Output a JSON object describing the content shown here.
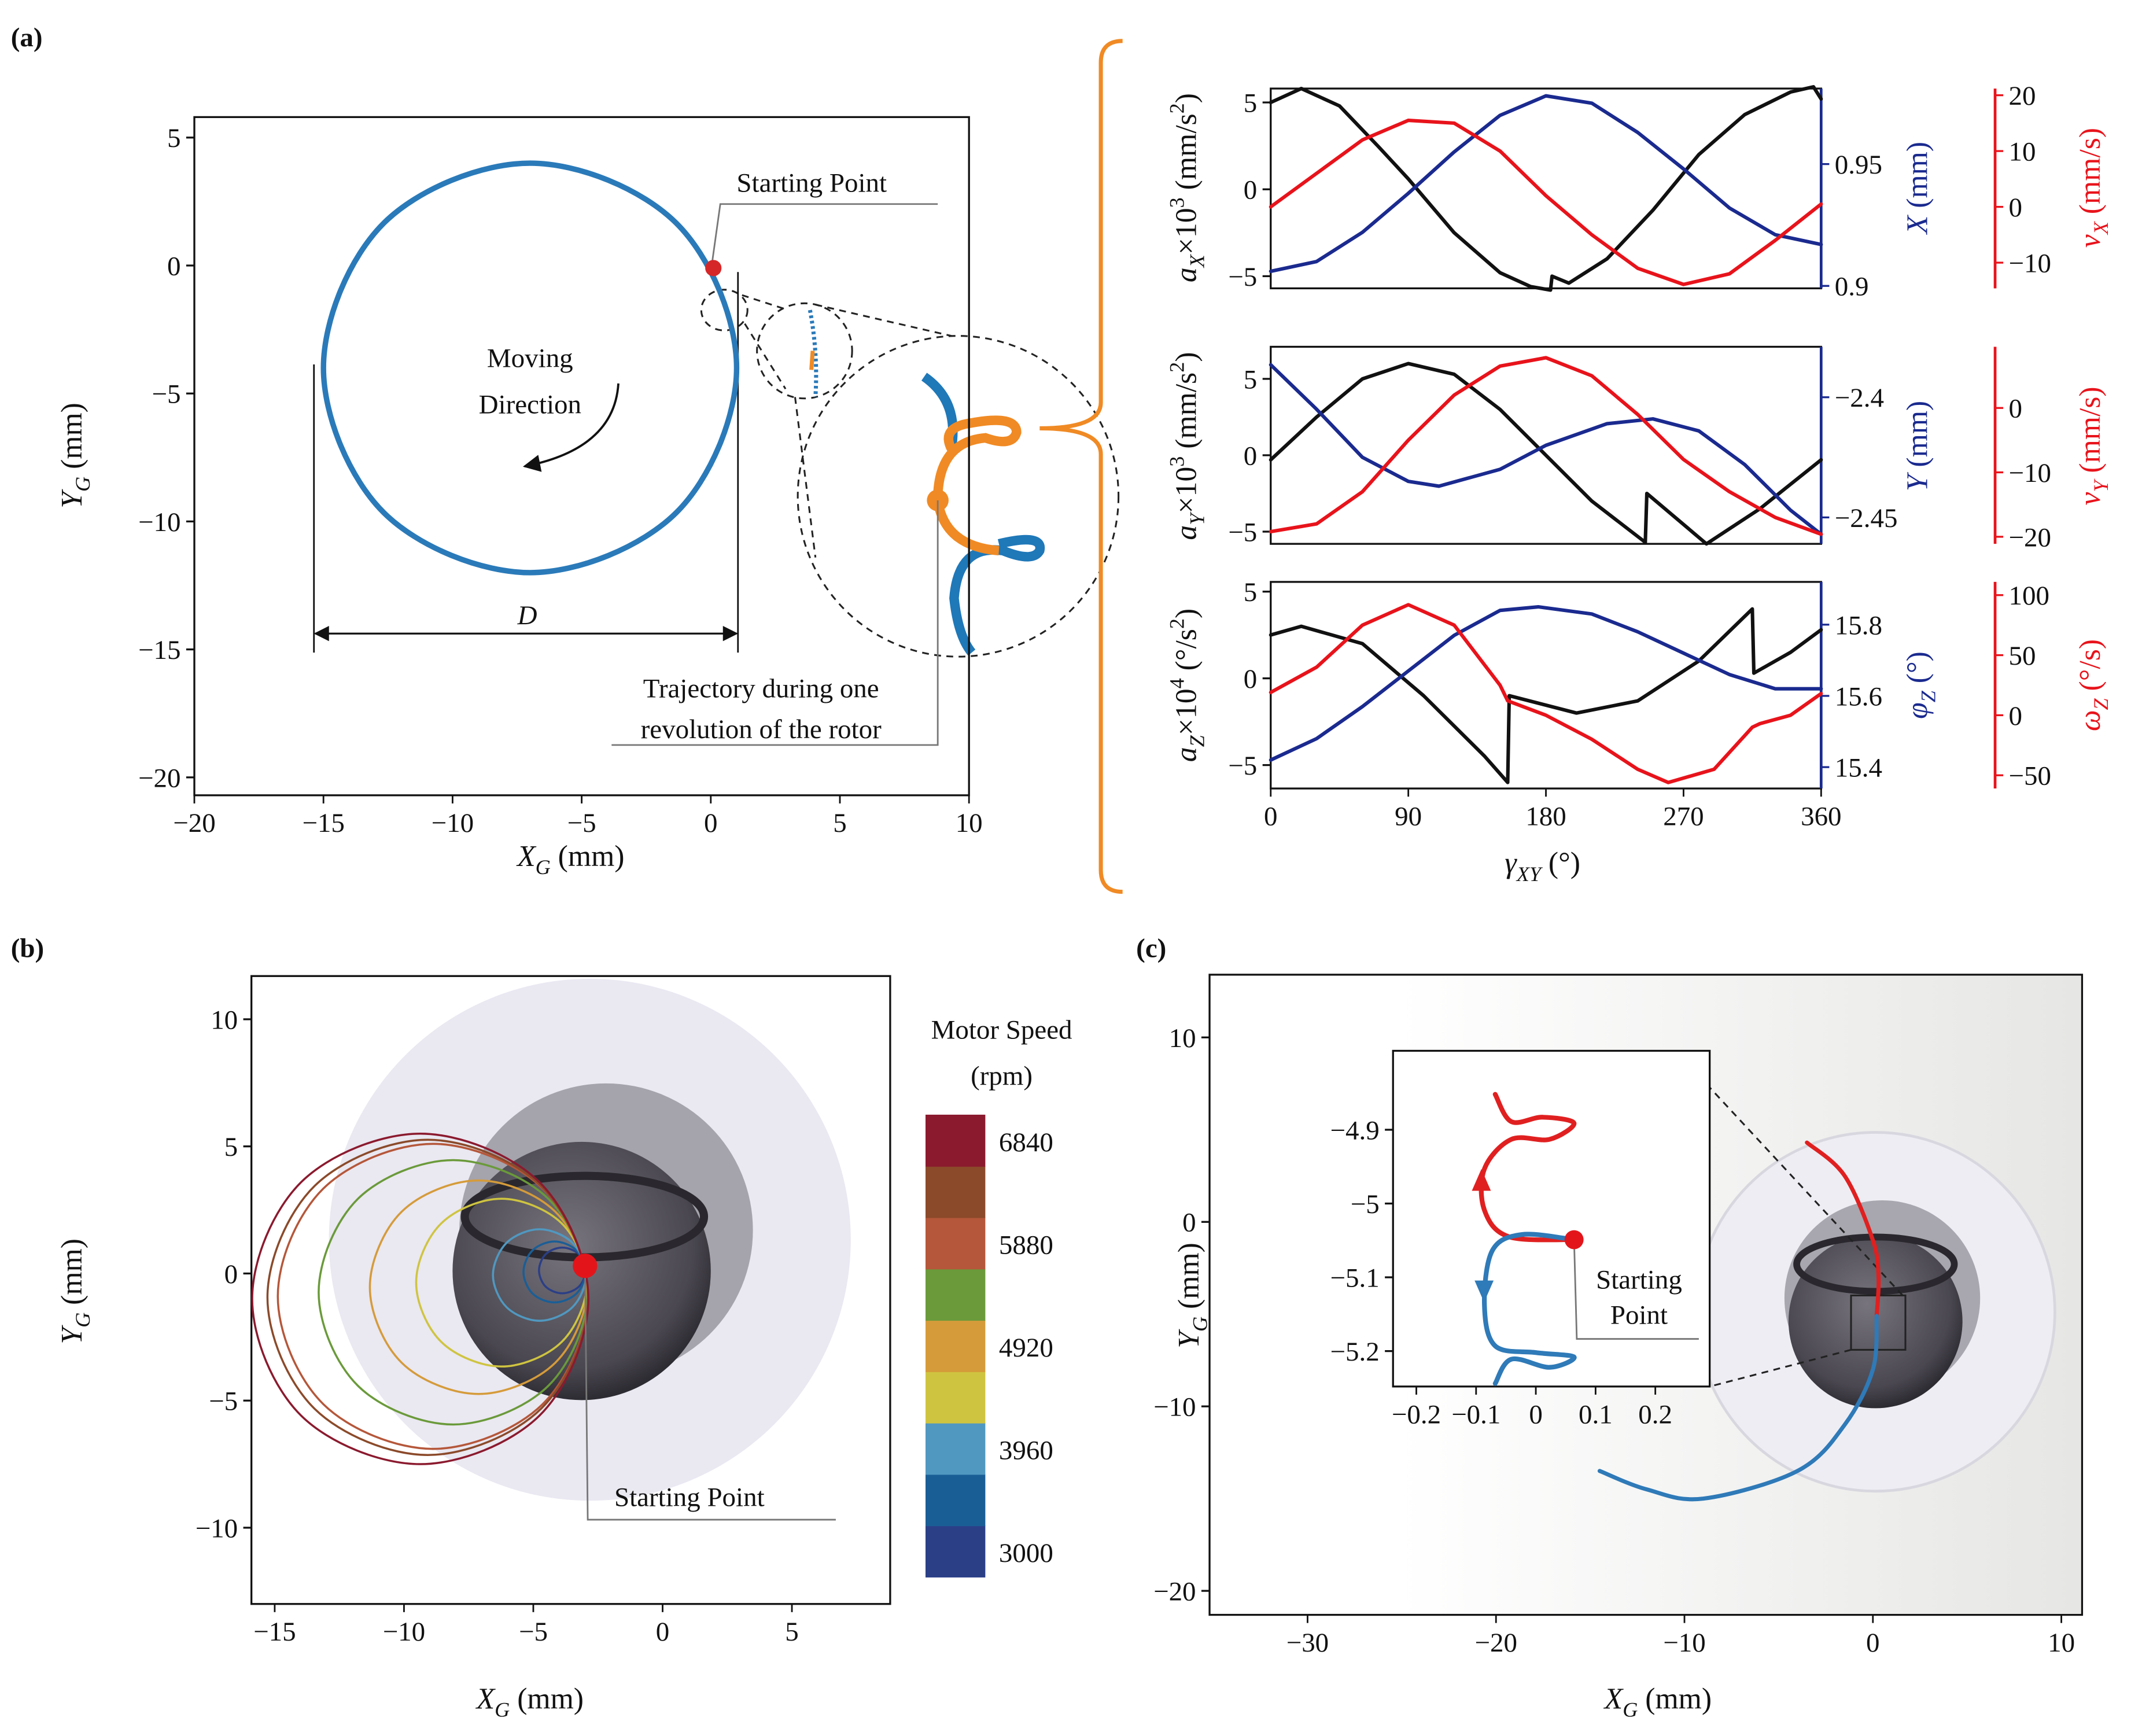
{
  "panel_labels": [
    "(a)",
    "(b)",
    "(c)"
  ],
  "chart_data": [
    {
      "type": "line",
      "xlabel": [
        "X",
        "G",
        " (mm)"
      ],
      "ylabel": [
        "Y",
        "G",
        " (mm)"
      ],
      "xlim": [
        -20,
        10
      ],
      "ylim": [
        -20.7,
        5.8
      ],
      "xticks": [
        {
          "value": -20,
          "label": "−20"
        },
        {
          "value": -15,
          "label": "−15"
        },
        {
          "value": -10,
          "label": "−10"
        },
        {
          "value": -5,
          "label": "−5"
        },
        0,
        5,
        10
      ],
      "yticks": [
        {
          "value": -20,
          "label": "−20"
        },
        {
          "value": -15,
          "label": "−15"
        },
        {
          "value": -10,
          "label": "−10"
        },
        {
          "value": -5,
          "label": "−5"
        },
        0,
        5
      ],
      "series": [
        {
          "color": "#2a7ab9",
          "x": [
            1,
            -1.34,
            -7,
            -12.66,
            -15,
            -12.66,
            -7,
            -1.34,
            1
          ],
          "values": [
            -4,
            1.66,
            4,
            1.66,
            -4,
            -9.66,
            -12,
            -9.66,
            -4
          ]
        }
      ],
      "marker": {
        "x": 0.1,
        "y": -0.1,
        "color": "#d62728"
      },
      "annotations": {
        "start": "Starting Point",
        "direction": [
          "Moving",
          "Direction"
        ],
        "diameter": "D",
        "trajectory": [
          "Trajectory during one",
          "revolution of the rotor"
        ]
      }
    },
    {
      "type": "line",
      "ylabel": [
        "a",
        "X",
        "×10",
        "3",
        " (mm/s",
        "2",
        ")"
      ],
      "y2label": [
        "X",
        " (mm)"
      ],
      "y3label": [
        "v",
        "X",
        " (mm/s)"
      ],
      "xlim": [
        0,
        360
      ],
      "ylim": [
        -5.7,
        5.8
      ],
      "yticks": [
        {
          "value": -5,
          "label": "−5"
        },
        0,
        5
      ],
      "y2lim": [
        0.899,
        0.981
      ],
      "y2ticks": [
        0.9,
        0.95
      ],
      "y3lim": [
        -14.6,
        21.2
      ],
      "y3ticks": [
        {
          "value": -10,
          "label": "−10"
        },
        0,
        10,
        20
      ],
      "series": [
        {
          "color": "#111111",
          "x": [
            0,
            20,
            45,
            70,
            90,
            120,
            150,
            170,
            183,
            184,
            195,
            220,
            250,
            280,
            310,
            340,
            355,
            360
          ],
          "values": [
            5.0,
            5.8,
            4.8,
            2.5,
            0.6,
            -2.5,
            -4.8,
            -5.6,
            -5.8,
            -5.0,
            -5.4,
            -4.0,
            -1.2,
            2.0,
            4.3,
            5.6,
            5.9,
            5.2
          ]
        },
        {
          "color": "#1a2a8f",
          "axis": "y2",
          "x": [
            0,
            30,
            60,
            90,
            120,
            150,
            180,
            210,
            240,
            270,
            300,
            330,
            360
          ],
          "values": [
            0.906,
            0.91,
            0.922,
            0.938,
            0.955,
            0.97,
            0.978,
            0.975,
            0.963,
            0.948,
            0.932,
            0.921,
            0.917
          ]
        },
        {
          "color": "#e8131b",
          "axis": "y3",
          "x": [
            0,
            30,
            60,
            90,
            120,
            150,
            180,
            210,
            240,
            270,
            300,
            330,
            360
          ],
          "values": [
            0,
            6,
            12,
            15.5,
            15,
            10,
            2,
            -5,
            -11,
            -13.9,
            -12,
            -6,
            0.5
          ]
        }
      ]
    },
    {
      "type": "line",
      "ylabel": [
        "a",
        "Y",
        "×10",
        "3",
        " (mm/s",
        "2",
        ")"
      ],
      "y2label": [
        "Y",
        " (mm)"
      ],
      "y3label": [
        "v",
        "Y",
        " (mm/s)"
      ],
      "xlim": [
        0,
        360
      ],
      "ylim": [
        -5.8,
        7.1
      ],
      "yticks": [
        {
          "value": -5,
          "label": "−5"
        },
        0,
        5
      ],
      "y2lim": [
        -2.461,
        -2.379
      ],
      "y2ticks": [
        {
          "value": -2.45,
          "label": "−2.45"
        },
        {
          "value": -2.4,
          "label": "−2.4"
        }
      ],
      "y3lim": [
        -21.1,
        9.5
      ],
      "y3ticks": [
        {
          "value": -20,
          "label": "−20"
        },
        {
          "value": -10,
          "label": "−10"
        },
        0
      ],
      "series": [
        {
          "color": "#111111",
          "x": [
            0,
            30,
            60,
            90,
            120,
            150,
            180,
            210,
            245,
            246,
            285,
            320,
            360
          ],
          "values": [
            -0.3,
            2.5,
            5.0,
            6.0,
            5.3,
            3.0,
            0.0,
            -3.0,
            -5.7,
            -2.5,
            -5.8,
            -3.5,
            -0.3
          ]
        },
        {
          "color": "#1a2a8f",
          "axis": "y2",
          "x": [
            0,
            30,
            60,
            90,
            110,
            150,
            180,
            220,
            250,
            280,
            310,
            340,
            360
          ],
          "values": [
            -2.3865,
            -2.405,
            -2.425,
            -2.435,
            -2.437,
            -2.43,
            -2.42,
            -2.411,
            -2.409,
            -2.414,
            -2.428,
            -2.447,
            -2.457
          ]
        },
        {
          "color": "#e8131b",
          "axis": "y3",
          "x": [
            0,
            30,
            60,
            90,
            120,
            150,
            180,
            210,
            240,
            270,
            300,
            330,
            360
          ],
          "values": [
            -19.2,
            -18,
            -13,
            -5,
            2,
            6.5,
            7.8,
            5,
            -1,
            -8,
            -13,
            -17,
            -19.6
          ]
        }
      ]
    },
    {
      "type": "line",
      "xlabel": [
        "γ",
        "XY",
        " (°)"
      ],
      "ylabel": [
        "a",
        "Z",
        "×10",
        "4",
        " (°/s",
        "2",
        ")"
      ],
      "y2label": [
        "φ",
        "Z",
        " (°)"
      ],
      "y3label": [
        "ω",
        "Z",
        " (°/s)"
      ],
      "xlim": [
        0,
        360
      ],
      "xticks": [
        0,
        90,
        180,
        270,
        360
      ],
      "ylim": [
        -6.35,
        5.56
      ],
      "yticks": [
        {
          "value": -5,
          "label": "−5"
        },
        0,
        5
      ],
      "y2lim": [
        15.34,
        15.92
      ],
      "y2ticks": [
        15.4,
        15.6,
        15.8
      ],
      "y3lim": [
        -61,
        111
      ],
      "y3ticks": [
        {
          "value": -50,
          "label": "−50"
        },
        0,
        50,
        100
      ],
      "series": [
        {
          "color": "#111111",
          "x": [
            0,
            20,
            60,
            100,
            140,
            155,
            156,
            200,
            240,
            280,
            315,
            316,
            340,
            360
          ],
          "values": [
            2.5,
            3.0,
            2.0,
            -1.0,
            -4.5,
            -6.0,
            -1.0,
            -2.0,
            -1.3,
            1.0,
            4.0,
            0.3,
            1.5,
            2.8
          ]
        },
        {
          "color": "#1a2a8f",
          "axis": "y2",
          "x": [
            0,
            30,
            60,
            90,
            120,
            150,
            175,
            210,
            240,
            270,
            300,
            330,
            360
          ],
          "values": [
            15.42,
            15.48,
            15.57,
            15.67,
            15.77,
            15.84,
            15.85,
            15.83,
            15.78,
            15.72,
            15.66,
            15.62,
            15.62
          ]
        },
        {
          "color": "#e8131b",
          "axis": "y3",
          "x": [
            0,
            30,
            60,
            90,
            120,
            150,
            155,
            180,
            210,
            240,
            260,
            290,
            315,
            320,
            340,
            360
          ],
          "values": [
            19,
            40,
            75,
            92,
            75,
            25,
            12,
            0,
            -20,
            -45,
            -56,
            -45,
            -10,
            -7,
            0,
            18
          ]
        }
      ]
    },
    {
      "type": "line",
      "xlabel": [
        "X",
        "G",
        " (mm)"
      ],
      "ylabel": [
        "Y",
        "G",
        " (mm)"
      ],
      "xlim": [
        -15.9,
        8.8
      ],
      "ylim": [
        -13,
        11.7
      ],
      "xticks": [
        {
          "value": -15,
          "label": "−15"
        },
        {
          "value": -10,
          "label": "−10"
        },
        {
          "value": -5,
          "label": "−5"
        },
        0,
        5
      ],
      "yticks": [
        {
          "value": -10,
          "label": "−10"
        },
        {
          "value": -5,
          "label": "−5"
        },
        0,
        5,
        10
      ],
      "series": [
        {
          "color": "#2b3f87",
          "x": [
            -2.98,
            -3.24,
            -3.88,
            -4.52,
            -4.78,
            -4.52,
            -3.88,
            -3.24,
            -2.98
          ],
          "values": [
            0.12,
            0.76,
            1.02,
            0.76,
            0.12,
            -0.52,
            -0.78,
            -0.52,
            0.12
          ]
        },
        {
          "color": "#1a5e96",
          "x": [
            -2.98,
            -3.33,
            -4.18,
            -5.03,
            -5.38,
            -5.03,
            -4.18,
            -3.33,
            -2.98
          ],
          "values": [
            0.06,
            0.91,
            1.26,
            0.91,
            0.06,
            -0.79,
            -1.14,
            -0.79,
            0.06
          ]
        },
        {
          "color": "#5098c0",
          "x": [
            -2.96,
            -3.49,
            -4.76,
            -6.03,
            -6.56,
            -6.03,
            -4.76,
            -3.49,
            -2.96
          ],
          "values": [
            -0.06,
            1.21,
            1.74,
            1.21,
            -0.06,
            -1.33,
            -1.86,
            -1.33,
            -0.06
          ]
        },
        {
          "color": "#cfc440",
          "x": [
            -2.93,
            -3.9,
            -6.23,
            -8.56,
            -9.53,
            -8.56,
            -6.23,
            -3.9,
            -2.93
          ],
          "values": [
            -0.36,
            1.97,
            2.94,
            1.97,
            -0.36,
            -2.69,
            -3.66,
            -2.69,
            -0.36
          ]
        },
        {
          "color": "#d59b3a",
          "x": [
            -2.92,
            -4.15,
            -7.12,
            -10.09,
            -11.32,
            -10.09,
            -7.12,
            -4.15,
            -2.92
          ],
          "values": [
            -0.54,
            2.43,
            3.66,
            2.43,
            -0.54,
            -3.51,
            -4.74,
            -3.51,
            -0.54
          ]
        },
        {
          "color": "#6a9a3a",
          "x": [
            -2.9,
            -4.42,
            -8.1,
            -11.78,
            -13.3,
            -11.78,
            -8.1,
            -4.42,
            -2.9
          ],
          "values": [
            -0.74,
            2.94,
            4.46,
            2.94,
            -0.74,
            -4.42,
            -5.94,
            -4.42,
            -0.74
          ]
        },
        {
          "color": "#b5573a",
          "x": [
            -2.88,
            -4.64,
            -8.88,
            -13.12,
            -14.88,
            -13.12,
            -8.88,
            -4.64,
            -2.88
          ],
          "values": [
            -0.9,
            3.34,
            5.1,
            3.34,
            -0.9,
            -5.14,
            -6.9,
            -5.14,
            -0.9
          ]
        },
        {
          "color": "#8b4a2a",
          "x": [
            -2.88,
            -4.7,
            -9.08,
            -13.46,
            -15.28,
            -13.46,
            -9.08,
            -4.7,
            -2.88
          ],
          "values": [
            -0.94,
            3.44,
            5.26,
            3.44,
            -0.94,
            -5.32,
            -7.14,
            -5.32,
            -0.94
          ]
        },
        {
          "color": "#8b1a2e",
          "x": [
            -2.87,
            -4.77,
            -9.37,
            -13.97,
            -15.87,
            -13.97,
            -9.37,
            -4.77,
            -2.87
          ],
          "values": [
            -1.0,
            3.6,
            5.5,
            3.6,
            -1.0,
            -5.6,
            -7.5,
            -5.6,
            -1.0
          ]
        }
      ],
      "colorbar": {
        "title": [
          "Motor Speed",
          "(rpm)"
        ],
        "values": [
          3000,
          3480,
          3960,
          4440,
          4920,
          5400,
          5880,
          6360,
          6840
        ],
        "colors": [
          "#2b3f87",
          "#1a5e96",
          "#5098c0",
          "#cfc440",
          "#d59b3a",
          "#6a9a3a",
          "#b5573a",
          "#8b4a2a",
          "#8b1a2e"
        ],
        "ticks": [
          3000,
          3960,
          4920,
          5880,
          6840
        ]
      },
      "marker": {
        "x": -3,
        "y": 0.3,
        "color": "#e3151b"
      },
      "annotations": {
        "start": "Starting Point"
      }
    },
    {
      "type": "line",
      "xlabel": [
        "X",
        "G",
        " (mm)"
      ],
      "ylabel": [
        "Y",
        "G",
        " (mm)"
      ],
      "xlim": [
        -35.2,
        11.1
      ],
      "ylim": [
        -21.3,
        13.4
      ],
      "xticks": [
        {
          "value": -30,
          "label": "−30"
        },
        {
          "value": -20,
          "label": "−20"
        },
        {
          "value": -10,
          "label": "−10"
        },
        0,
        10
      ],
      "yticks": [
        {
          "value": -20,
          "label": "−20"
        },
        {
          "value": -10,
          "label": "−10"
        },
        0,
        10
      ],
      "series": [
        {
          "color": "#e02020",
          "x": [
            -3.5,
            -1.5,
            0,
            0.3,
            0.2
          ],
          "values": [
            4.3,
            2.5,
            -1,
            -3,
            -5.1
          ]
        },
        {
          "color": "#2f7ab8",
          "x": [
            0.2,
            0,
            -1.5,
            -4,
            -9,
            -12,
            -14.5
          ],
          "values": [
            -5.1,
            -8,
            -11,
            -13.5,
            -15,
            -14.5,
            -13.5
          ]
        }
      ]
    },
    {
      "type": "line",
      "xlim": [
        -0.239,
        0.291
      ],
      "ylim": [
        -5.248,
        -4.793
      ],
      "xticks": [
        {
          "value": -0.2,
          "label": "−0.2"
        },
        {
          "value": -0.1,
          "label": "−0.1"
        },
        0,
        0.1,
        0.2
      ],
      "yticks": [
        {
          "value": -5.2,
          "label": "−5.2"
        },
        {
          "value": -5.1,
          "label": "−5.1"
        },
        {
          "value": -5,
          "label": "−5"
        },
        {
          "value": -4.9,
          "label": "−4.9"
        }
      ],
      "series": [
        {
          "color": "#e02020",
          "x": [
            -0.068,
            -0.041,
            0.011,
            0.064,
            0.023,
            -0.041,
            -0.086,
            -0.086,
            -0.045,
            0.064
          ],
          "values": [
            -4.852,
            -4.889,
            -4.883,
            -4.891,
            -4.913,
            -4.913,
            -4.953,
            -5.009,
            -5.045,
            -5.049
          ]
        },
        {
          "color": "#2f7ab8",
          "x": [
            0.064,
            -0.023,
            -0.073,
            -0.086,
            -0.068,
            0,
            0.064,
            0.023,
            -0.041,
            -0.068
          ],
          "values": [
            -5.049,
            -5.042,
            -5.064,
            -5.138,
            -5.193,
            -5.202,
            -5.208,
            -5.222,
            -5.211,
            -5.244
          ]
        }
      ],
      "marker": {
        "x": 0.064,
        "y": -5.049,
        "color": "#e3151b"
      },
      "annotations": {
        "start": [
          "Starting",
          "Point"
        ]
      }
    }
  ]
}
